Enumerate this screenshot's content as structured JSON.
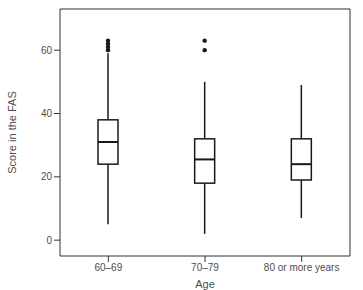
{
  "chart_data": {
    "type": "box",
    "xlabel": "Age",
    "ylabel": "Score in the FAS",
    "categories": [
      "60–69",
      "70–79",
      "80 or more years"
    ],
    "boxes": [
      {
        "whisker_low": 5,
        "q1": 24,
        "median": 31,
        "q3": 38,
        "whisker_high": 59,
        "outliers": [
          60,
          61,
          62,
          63
        ]
      },
      {
        "whisker_low": 2,
        "q1": 18,
        "median": 25.5,
        "q3": 32,
        "whisker_high": 50,
        "outliers": [
          60,
          63
        ]
      },
      {
        "whisker_low": 7,
        "q1": 19,
        "median": 24,
        "q3": 32,
        "whisker_high": 49,
        "outliers": []
      }
    ],
    "color": "#1a1a1a",
    "ylim": [
      -5,
      73
    ],
    "yticks": [
      0,
      20,
      40,
      60
    ],
    "grid": false
  }
}
